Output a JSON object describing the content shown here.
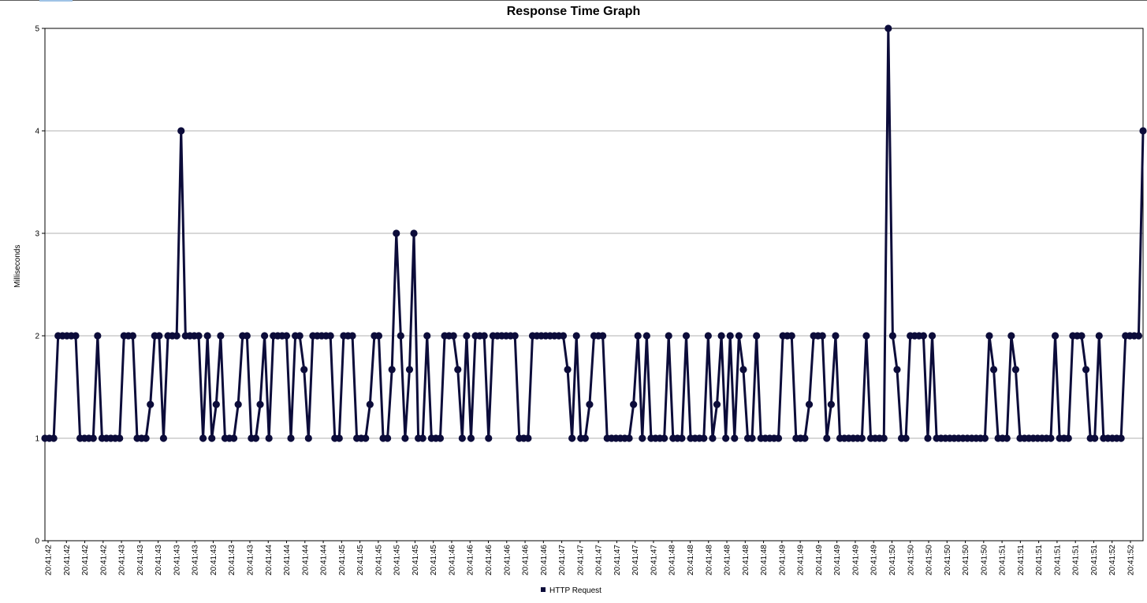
{
  "chart_data": {
    "type": "line",
    "title": "Response Time Graph",
    "xlabel": "",
    "ylabel": "Milliseconds",
    "ylim": [
      0,
      5
    ],
    "yticks": [
      0,
      1,
      2,
      3,
      4,
      5
    ],
    "grid": true,
    "legend_position": "bottom",
    "series_color": "#0c0c3a",
    "x_tick_labels": [
      "20:41:42",
      "20:41:42",
      "20:41:42",
      "20:41:42",
      "20:41:43",
      "20:41:43",
      "20:41:43",
      "20:41:43",
      "20:41:43",
      "20:41:43",
      "20:41:43",
      "20:41:43",
      "20:41:44",
      "20:41:44",
      "20:41:44",
      "20:41:44",
      "20:41:45",
      "20:41:45",
      "20:41:45",
      "20:41:45",
      "20:41:45",
      "20:41:45",
      "20:41:46",
      "20:41:46",
      "20:41:46",
      "20:41:46",
      "20:41:46",
      "20:41:46",
      "20:41:47",
      "20:41:47",
      "20:41:47",
      "20:41:47",
      "20:41:47",
      "20:41:47",
      "20:41:48",
      "20:41:48",
      "20:41:48",
      "20:41:48",
      "20:41:48",
      "20:41:48",
      "20:41:49",
      "20:41:49",
      "20:41:49",
      "20:41:49",
      "20:41:49",
      "20:41:49",
      "20:41:50",
      "20:41:50",
      "20:41:50",
      "20:41:50",
      "20:41:50",
      "20:41:50",
      "20:41:51",
      "20:41:51",
      "20:41:51",
      "20:41:51",
      "20:41:51",
      "20:41:51",
      "20:41:52",
      "20:41:52"
    ],
    "series": [
      {
        "name": "HTTP Request",
        "values": [
          1,
          1,
          1,
          2,
          2,
          2,
          2,
          2,
          1,
          1,
          1,
          1,
          2,
          1,
          1,
          1,
          1,
          1,
          2,
          2,
          2,
          1,
          1,
          1,
          1.33,
          2,
          2,
          1,
          2,
          2,
          2,
          4,
          2,
          2,
          2,
          2,
          1,
          2,
          1,
          1.33,
          2,
          1,
          1,
          1,
          1.33,
          2,
          2,
          1,
          1,
          1.33,
          2,
          1,
          2,
          2,
          2,
          2,
          1,
          2,
          2,
          1.67,
          1,
          2,
          2,
          2,
          2,
          2,
          1,
          1,
          2,
          2,
          2,
          1,
          1,
          1,
          1.33,
          2,
          2,
          1,
          1,
          1.67,
          3,
          2,
          1,
          1.67,
          3,
          1,
          1,
          2,
          1,
          1,
          1,
          2,
          2,
          2,
          1.67,
          1,
          2,
          1,
          2,
          2,
          2,
          1,
          2,
          2,
          2,
          2,
          2,
          2,
          1,
          1,
          1,
          2,
          2,
          2,
          2,
          2,
          2,
          2,
          2,
          1.67,
          1,
          2,
          1,
          1,
          1.33,
          2,
          2,
          2,
          1,
          1,
          1,
          1,
          1,
          1,
          1.33,
          2,
          1,
          2,
          1,
          1,
          1,
          1,
          2,
          1,
          1,
          1,
          2,
          1,
          1,
          1,
          1,
          2,
          1,
          1.33,
          2,
          1,
          2,
          1,
          2,
          1.67,
          1,
          1,
          2,
          1,
          1,
          1,
          1,
          1,
          2,
          2,
          2,
          1,
          1,
          1,
          1.33,
          2,
          2,
          2,
          1,
          1.33,
          2,
          1,
          1,
          1,
          1,
          1,
          1,
          2,
          1,
          1,
          1,
          1,
          5,
          2,
          1.67,
          1,
          1,
          2,
          2,
          2,
          2,
          1,
          2,
          1,
          1,
          1,
          1,
          1,
          1,
          1,
          1,
          1,
          1,
          1,
          1,
          2,
          1.67,
          1,
          1,
          1,
          2,
          1.67,
          1,
          1,
          1,
          1,
          1,
          1,
          1,
          1,
          2,
          1,
          1,
          1,
          2,
          2,
          2,
          1.67,
          1,
          1,
          2,
          1,
          1,
          1,
          1,
          1,
          2,
          2,
          2,
          2,
          4
        ]
      }
    ]
  },
  "legend": {
    "label": "HTTP Request"
  }
}
